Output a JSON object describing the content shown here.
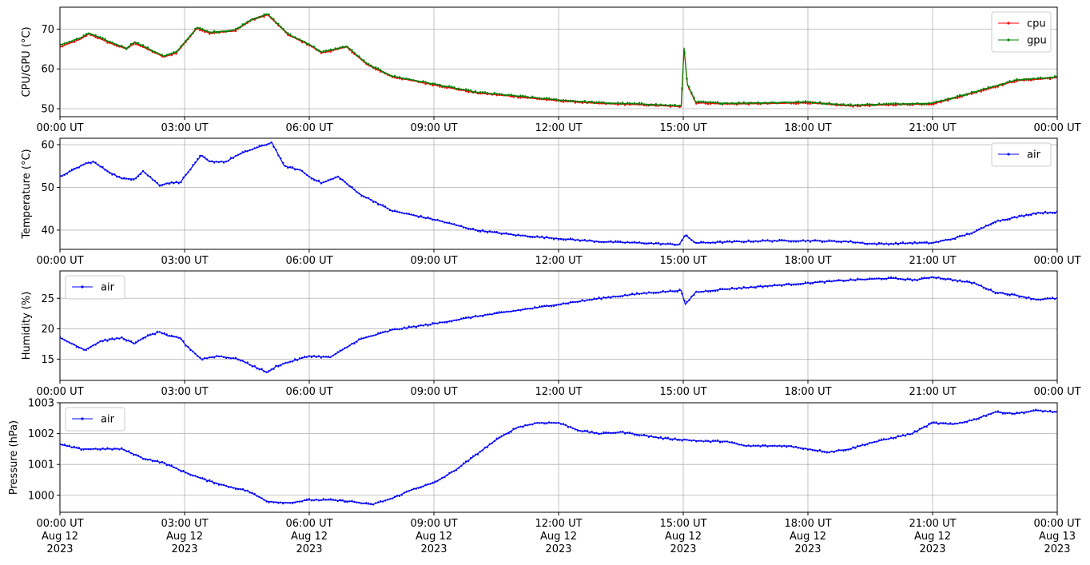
{
  "x_tick_labels": [
    "00:00 UT",
    "03:00 UT",
    "06:00 UT",
    "09:00 UT",
    "12:00 UT",
    "15:00 UT",
    "18:00 UT",
    "21:00 UT",
    "00:00 UT"
  ],
  "x_date_labels": [
    [
      "Aug 12",
      "2023"
    ],
    [
      "Aug 12",
      "2023"
    ],
    [
      "Aug 12",
      "2023"
    ],
    [
      "Aug 12",
      "2023"
    ],
    [
      "Aug 12",
      "2023"
    ],
    [
      "Aug 12",
      "2023"
    ],
    [
      "Aug 12",
      "2023"
    ],
    [
      "Aug 12",
      "2023"
    ],
    [
      "Aug 13",
      "2023"
    ]
  ],
  "colors": {
    "cpu": "#ff0000",
    "gpu": "#008000",
    "air": "#0000ff",
    "grid": "#b0b0b0"
  },
  "chart_data": [
    {
      "type": "line",
      "ylabel": "CPU/GPU (°C)",
      "xlim": [
        "2023-08-12 00:00",
        "2023-08-13 00:00"
      ],
      "ylim": [
        48,
        75.5
      ],
      "yticks": [
        50,
        60,
        70
      ],
      "legend": "top-right",
      "grid": true,
      "series": [
        {
          "name": "cpu",
          "x_hours": [
            0,
            0.5,
            0.7,
            1.2,
            1.6,
            1.8,
            2.5,
            2.8,
            3.3,
            3.6,
            4.2,
            4.6,
            5.0,
            5.5,
            6.0,
            6.3,
            6.9,
            7.4,
            8.0,
            9.0,
            10.0,
            11.0,
            12.0,
            13.0,
            14.0,
            14.95,
            15.02,
            15.1,
            15.3,
            16.0,
            17.0,
            18.0,
            19.0,
            20.0,
            21.0,
            22.0,
            23.0,
            24.0
          ],
          "values": [
            65.5,
            67.5,
            68.8,
            66.5,
            65.0,
            66.5,
            63.0,
            64.0,
            70.2,
            69.0,
            69.5,
            72.2,
            73.6,
            68.5,
            66.0,
            64.0,
            65.5,
            61.0,
            58.0,
            56.0,
            54.0,
            53.0,
            52.0,
            51.3,
            51.0,
            50.5,
            65.0,
            56.0,
            51.5,
            51.2,
            51.3,
            51.5,
            50.7,
            51.0,
            51.2,
            54.0,
            57.0,
            57.8
          ]
        },
        {
          "name": "gpu",
          "x_hours": [
            0,
            0.5,
            0.7,
            1.2,
            1.6,
            1.8,
            2.5,
            2.8,
            3.3,
            3.6,
            4.2,
            4.6,
            5.0,
            5.5,
            6.0,
            6.3,
            6.9,
            7.4,
            8.0,
            9.0,
            10.0,
            11.0,
            12.0,
            13.0,
            14.0,
            14.95,
            15.02,
            15.1,
            15.3,
            16.0,
            17.0,
            18.0,
            19.0,
            20.0,
            21.0,
            22.0,
            23.0,
            24.0
          ],
          "values": [
            66.0,
            67.8,
            69.0,
            66.8,
            65.2,
            66.8,
            63.2,
            64.2,
            70.4,
            69.2,
            69.7,
            72.4,
            73.8,
            68.7,
            66.2,
            64.2,
            65.7,
            61.2,
            58.2,
            56.2,
            54.2,
            53.2,
            52.2,
            51.5,
            51.2,
            50.7,
            65.3,
            56.2,
            51.7,
            51.4,
            51.5,
            51.7,
            50.9,
            51.2,
            51.4,
            54.2,
            57.2,
            58.0
          ]
        }
      ]
    },
    {
      "type": "line",
      "ylabel": "Temperature (°C)",
      "xlim": [
        "2023-08-12 00:00",
        "2023-08-13 00:00"
      ],
      "ylim": [
        35.5,
        61.5
      ],
      "yticks": [
        40,
        50,
        60
      ],
      "legend": "top-right",
      "grid": true,
      "series": [
        {
          "name": "air",
          "x_hours": [
            0,
            0.6,
            0.8,
            1.2,
            1.5,
            1.8,
            2.0,
            2.4,
            2.6,
            2.9,
            3.0,
            3.4,
            3.6,
            4.0,
            4.2,
            4.5,
            5.1,
            5.4,
            5.8,
            6.0,
            6.3,
            6.7,
            7.2,
            8.0,
            9.0,
            10.0,
            11.0,
            12.0,
            13.0,
            14.0,
            14.9,
            15.05,
            15.3,
            16.0,
            17.0,
            18.0,
            19.0,
            19.5,
            20.0,
            20.5,
            21.0,
            21.5,
            22.0,
            22.5,
            23.0,
            23.5,
            24.0
          ],
          "values": [
            52.5,
            55.5,
            56.0,
            53.5,
            52.0,
            52.0,
            53.8,
            50.5,
            51.0,
            51.2,
            52.5,
            57.5,
            56.0,
            56.0,
            57.2,
            58.5,
            60.5,
            55.0,
            54.0,
            52.5,
            51.0,
            52.5,
            48.5,
            44.5,
            42.5,
            40.0,
            38.8,
            38.0,
            37.3,
            37.0,
            36.6,
            38.8,
            37.0,
            37.2,
            37.5,
            37.5,
            37.3,
            36.8,
            36.8,
            37.0,
            37.0,
            38.0,
            39.5,
            42.0,
            43.0,
            44.0,
            44.2
          ]
        }
      ]
    },
    {
      "type": "line",
      "ylabel": "Humidity (%)",
      "xlim": [
        "2023-08-12 00:00",
        "2023-08-13 00:00"
      ],
      "ylim": [
        11.5,
        29.5
      ],
      "yticks": [
        15,
        20,
        25
      ],
      "legend": "top-left",
      "grid": true,
      "series": [
        {
          "name": "air",
          "x_hours": [
            0,
            0.6,
            1.0,
            1.5,
            1.8,
            2.0,
            2.4,
            2.6,
            2.9,
            3.0,
            3.4,
            3.8,
            4.3,
            4.6,
            5.0,
            5.2,
            5.5,
            6.0,
            6.5,
            6.8,
            7.2,
            8.0,
            9.0,
            10.0,
            11.0,
            12.0,
            13.0,
            14.0,
            14.95,
            15.05,
            15.3,
            16.0,
            17.0,
            18.0,
            19.0,
            20.0,
            20.6,
            21.0,
            21.5,
            22.0,
            22.5,
            23.0,
            23.5,
            24.0
          ],
          "values": [
            18.5,
            16.5,
            18.0,
            18.5,
            17.5,
            18.5,
            19.5,
            18.8,
            18.5,
            17.5,
            15.0,
            15.5,
            15.0,
            14.0,
            12.8,
            13.8,
            14.5,
            15.5,
            15.3,
            16.5,
            18.2,
            19.8,
            20.8,
            22.0,
            23.0,
            24.0,
            25.0,
            25.8,
            26.3,
            24.0,
            26.0,
            26.5,
            27.0,
            27.5,
            28.0,
            28.3,
            28.0,
            28.5,
            28.0,
            27.5,
            26.0,
            25.5,
            24.8,
            25.0
          ]
        }
      ]
    },
    {
      "type": "line",
      "ylabel": "Pressure (hPa)",
      "xlim": [
        "2023-08-12 00:00",
        "2023-08-13 00:00"
      ],
      "ylim": [
        999.45,
        1003.0
      ],
      "yticks": [
        1000,
        1001,
        1002,
        1003
      ],
      "legend": "top-left",
      "grid": true,
      "series": [
        {
          "name": "air",
          "x_hours": [
            0,
            0.5,
            1.0,
            1.5,
            2.0,
            2.5,
            3.0,
            3.5,
            4.0,
            4.5,
            5.0,
            5.5,
            6.0,
            6.5,
            7.0,
            7.5,
            8.0,
            8.5,
            9.0,
            9.5,
            10.0,
            10.5,
            11.0,
            11.5,
            12.0,
            12.5,
            13.0,
            13.5,
            14.0,
            14.5,
            15.0,
            15.5,
            16.0,
            16.5,
            17.0,
            17.5,
            18.0,
            18.5,
            19.0,
            19.5,
            20.0,
            20.5,
            21.0,
            21.5,
            22.0,
            22.5,
            23.0,
            23.5,
            24.0
          ],
          "values": [
            1001.65,
            1001.5,
            1001.5,
            1001.5,
            1001.2,
            1001.05,
            1000.75,
            1000.5,
            1000.3,
            1000.15,
            999.8,
            999.75,
            999.85,
            999.85,
            999.8,
            999.7,
            999.9,
            1000.2,
            1000.4,
            1000.8,
            1001.3,
            1001.8,
            1002.2,
            1002.35,
            1002.35,
            1002.1,
            1002.0,
            1002.05,
            1001.95,
            1001.85,
            1001.8,
            1001.75,
            1001.75,
            1001.6,
            1001.6,
            1001.6,
            1001.5,
            1001.4,
            1001.5,
            1001.7,
            1001.85,
            1002.0,
            1002.35,
            1002.3,
            1002.45,
            1002.7,
            1002.65,
            1002.75,
            1002.7
          ]
        }
      ]
    }
  ]
}
